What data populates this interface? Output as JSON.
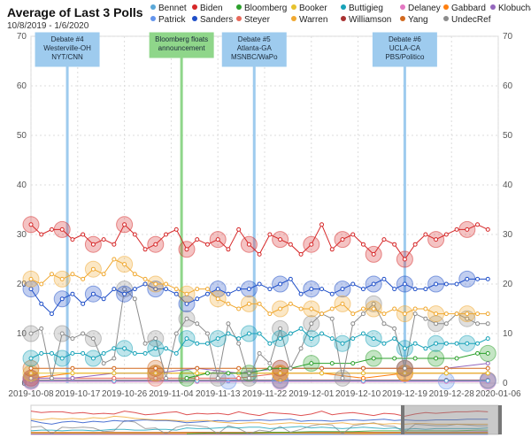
{
  "header": {
    "title": "Average of Last 3 Polls",
    "subtitle": "10/8/2019 - 1/6/2020"
  },
  "legend": [
    {
      "name": "Bennet",
      "color": "#5aa8d8"
    },
    {
      "name": "Biden",
      "color": "#d62728"
    },
    {
      "name": "Bloomberg",
      "color": "#2ca02c"
    },
    {
      "name": "Booker",
      "color": "#e6c22e"
    },
    {
      "name": "Buttigieg",
      "color": "#17a2b8"
    },
    {
      "name": "Delaney",
      "color": "#e377c2"
    },
    {
      "name": "Gabbard",
      "color": "#ff7f0e"
    },
    {
      "name": "Klobuchar",
      "color": "#9467bd"
    },
    {
      "name": "Patrick",
      "color": "#6495ed"
    },
    {
      "name": "Sanders",
      "color": "#1f4fc8"
    },
    {
      "name": "Steyer",
      "color": "#e8685a"
    },
    {
      "name": "Warren",
      "color": "#f0a830"
    },
    {
      "name": "Williamson",
      "color": "#a83232"
    },
    {
      "name": "Yang",
      "color": "#d2691e"
    },
    {
      "name": "UndecRef",
      "color": "#8c8c8c"
    }
  ],
  "chart_data": {
    "type": "line",
    "title": "Average of Last 3 Polls",
    "subtitle": "10/8/2019 - 1/6/2020",
    "ylim": [
      0,
      70
    ],
    "yticks": [
      0,
      10,
      20,
      30,
      40,
      50,
      60,
      70
    ],
    "xlim": [
      "2019-10-08",
      "2020-01-06"
    ],
    "xticks": [
      "2019-10-08",
      "2019-10-17",
      "2019-10-26",
      "2019-11-04",
      "2019-11-13",
      "2019-11-22",
      "2019-12-01",
      "2019-12-10",
      "2019-12-19",
      "2019-12-28",
      "2020-01-06"
    ],
    "grid": true,
    "annotations": [
      {
        "date": "2019-10-15",
        "label": "Debate #4 Westerville-OH NYT/CNN",
        "color": "#9ecbee"
      },
      {
        "date": "2019-11-06",
        "label": "Bloomberg floats announcement",
        "color": "#8fd68a"
      },
      {
        "date": "2019-11-20",
        "label": "Debate #5 Atlanta-GA MSNBC/WaPo",
        "color": "#9ecbee"
      },
      {
        "date": "2019-12-19",
        "label": "Debate #6 UCLA-CA PBS/Politico",
        "color": "#9ecbee"
      }
    ],
    "series": [
      {
        "name": "Biden",
        "color": "#d62728",
        "x": [
          "2019-10-08",
          "2019-10-10",
          "2019-10-12",
          "2019-10-14",
          "2019-10-16",
          "2019-10-18",
          "2019-10-20",
          "2019-10-22",
          "2019-10-24",
          "2019-10-26",
          "2019-10-28",
          "2019-10-30",
          "2019-11-01",
          "2019-11-03",
          "2019-11-05",
          "2019-11-07",
          "2019-11-09",
          "2019-11-11",
          "2019-11-13",
          "2019-11-15",
          "2019-11-17",
          "2019-11-19",
          "2019-11-21",
          "2019-11-23",
          "2019-11-25",
          "2019-11-27",
          "2019-11-29",
          "2019-12-01",
          "2019-12-03",
          "2019-12-05",
          "2019-12-07",
          "2019-12-09",
          "2019-12-11",
          "2019-12-13",
          "2019-12-15",
          "2019-12-17",
          "2019-12-19",
          "2019-12-21",
          "2019-12-23",
          "2019-12-25",
          "2019-12-27",
          "2019-12-29",
          "2019-12-31",
          "2020-01-02",
          "2020-01-04"
        ],
        "y": [
          32,
          30,
          31,
          31,
          29,
          30,
          28,
          29,
          28,
          32,
          30,
          27,
          28,
          30,
          31,
          27,
          29,
          28,
          29,
          27,
          31,
          28,
          26,
          30,
          29,
          28,
          26,
          28,
          32,
          27,
          29,
          30,
          28,
          26,
          29,
          28,
          25,
          28,
          30,
          29,
          30,
          31,
          31,
          32,
          31
        ]
      },
      {
        "name": "Warren",
        "color": "#f0a830",
        "x": [
          "2019-10-08",
          "2019-10-10",
          "2019-10-12",
          "2019-10-14",
          "2019-10-16",
          "2019-10-18",
          "2019-10-20",
          "2019-10-22",
          "2019-10-24",
          "2019-10-26",
          "2019-10-28",
          "2019-10-30",
          "2019-11-01",
          "2019-11-03",
          "2019-11-05",
          "2019-11-07",
          "2019-11-09",
          "2019-11-11",
          "2019-11-13",
          "2019-11-15",
          "2019-11-17",
          "2019-11-19",
          "2019-11-21",
          "2019-11-23",
          "2019-11-25",
          "2019-11-27",
          "2019-11-29",
          "2019-12-01",
          "2019-12-03",
          "2019-12-05",
          "2019-12-07",
          "2019-12-09",
          "2019-12-11",
          "2019-12-13",
          "2019-12-15",
          "2019-12-17",
          "2019-12-19",
          "2019-12-21",
          "2019-12-23",
          "2019-12-25",
          "2019-12-27",
          "2019-12-29",
          "2019-12-31",
          "2020-01-02",
          "2020-01-04"
        ],
        "y": [
          21,
          20,
          22,
          21,
          22,
          21,
          23,
          22,
          25,
          24,
          22,
          21,
          20,
          20,
          19,
          18,
          19,
          19,
          17,
          16,
          15,
          16,
          16,
          14,
          15,
          16,
          15,
          15,
          14,
          15,
          16,
          14,
          15,
          15,
          14,
          15,
          14,
          15,
          15,
          14,
          14,
          14,
          14,
          14,
          14
        ]
      },
      {
        "name": "Sanders",
        "color": "#1f4fc8",
        "x": [
          "2019-10-08",
          "2019-10-10",
          "2019-10-12",
          "2019-10-14",
          "2019-10-16",
          "2019-10-18",
          "2019-10-20",
          "2019-10-22",
          "2019-10-24",
          "2019-10-26",
          "2019-10-28",
          "2019-10-30",
          "2019-11-01",
          "2019-11-03",
          "2019-11-05",
          "2019-11-07",
          "2019-11-09",
          "2019-11-11",
          "2019-11-13",
          "2019-11-15",
          "2019-11-17",
          "2019-11-19",
          "2019-11-21",
          "2019-11-23",
          "2019-11-25",
          "2019-11-27",
          "2019-11-29",
          "2019-12-01",
          "2019-12-03",
          "2019-12-05",
          "2019-12-07",
          "2019-12-09",
          "2019-12-11",
          "2019-12-13",
          "2019-12-15",
          "2019-12-17",
          "2019-12-19",
          "2019-12-21",
          "2019-12-23",
          "2019-12-25",
          "2019-12-27",
          "2019-12-29",
          "2019-12-31",
          "2020-01-02",
          "2020-01-04"
        ],
        "y": [
          19,
          16,
          14,
          17,
          18,
          16,
          18,
          17,
          19,
          18,
          19,
          20,
          19,
          19,
          18,
          16,
          17,
          18,
          19,
          18,
          19,
          19,
          20,
          19,
          20,
          21,
          18,
          19,
          19,
          18,
          19,
          20,
          19,
          20,
          21,
          19,
          20,
          19,
          19,
          20,
          20,
          20,
          21,
          21,
          21
        ]
      },
      {
        "name": "Buttigieg",
        "color": "#17a2b8",
        "x": [
          "2019-10-08",
          "2019-10-10",
          "2019-10-12",
          "2019-10-14",
          "2019-10-16",
          "2019-10-18",
          "2019-10-20",
          "2019-10-22",
          "2019-10-24",
          "2019-10-26",
          "2019-10-28",
          "2019-10-30",
          "2019-11-01",
          "2019-11-03",
          "2019-11-05",
          "2019-11-07",
          "2019-11-09",
          "2019-11-11",
          "2019-11-13",
          "2019-11-15",
          "2019-11-17",
          "2019-11-19",
          "2019-11-21",
          "2019-11-23",
          "2019-11-25",
          "2019-11-27",
          "2019-11-29",
          "2019-12-01",
          "2019-12-03",
          "2019-12-05",
          "2019-12-07",
          "2019-12-09",
          "2019-12-11",
          "2019-12-13",
          "2019-12-15",
          "2019-12-17",
          "2019-12-19",
          "2019-12-21",
          "2019-12-23",
          "2019-12-25",
          "2019-12-27",
          "2019-12-29",
          "2019-12-31",
          "2020-01-02",
          "2020-01-04"
        ],
        "y": [
          5,
          6,
          6,
          5,
          6,
          6,
          5,
          6,
          7,
          7,
          6,
          6,
          7,
          7,
          6,
          9,
          8,
          8,
          9,
          10,
          9,
          10,
          10,
          8,
          9,
          10,
          11,
          9,
          10,
          9,
          8,
          9,
          10,
          9,
          8,
          9,
          7,
          8,
          7,
          8,
          8,
          8,
          8,
          8,
          9
        ]
      },
      {
        "name": "UndecRef",
        "color": "#8c8c8c",
        "x": [
          "2019-10-08",
          "2019-10-10",
          "2019-10-12",
          "2019-10-14",
          "2019-10-16",
          "2019-10-18",
          "2019-10-20",
          "2019-10-22",
          "2019-10-24",
          "2019-10-26",
          "2019-10-28",
          "2019-10-30",
          "2019-11-01",
          "2019-11-03",
          "2019-11-05",
          "2019-11-07",
          "2019-11-09",
          "2019-11-11",
          "2019-11-13",
          "2019-11-15",
          "2019-11-17",
          "2019-11-19",
          "2019-11-21",
          "2019-11-23",
          "2019-11-25",
          "2019-11-27",
          "2019-11-29",
          "2019-12-01",
          "2019-12-03",
          "2019-12-05",
          "2019-12-07",
          "2019-12-09",
          "2019-12-11",
          "2019-12-13",
          "2019-12-15",
          "2019-12-17",
          "2019-12-19",
          "2019-12-21",
          "2019-12-23",
          "2019-12-25",
          "2019-12-27",
          "2019-12-29",
          "2019-12-31",
          "2020-01-02",
          "2020-01-04"
        ],
        "y": [
          10,
          11,
          1,
          10,
          9,
          10,
          9,
          4,
          5,
          19,
          17,
          8,
          9,
          1,
          10,
          13,
          12,
          10,
          1,
          12,
          8,
          1,
          6,
          4,
          11,
          3,
          7,
          12,
          14,
          13,
          1,
          12,
          14,
          16,
          12,
          11,
          3,
          14,
          13,
          12,
          12,
          14,
          13,
          12,
          12
        ]
      },
      {
        "name": "Bloomberg",
        "color": "#2ca02c",
        "x": [
          "2019-11-07",
          "2019-11-11",
          "2019-11-15",
          "2019-11-19",
          "2019-11-23",
          "2019-11-27",
          "2019-12-01",
          "2019-12-05",
          "2019-12-09",
          "2019-12-13",
          "2019-12-17",
          "2019-12-21",
          "2019-12-25",
          "2019-12-29",
          "2020-01-02",
          "2020-01-04"
        ],
        "y": [
          1,
          2,
          2,
          2,
          3,
          3,
          4,
          4,
          4,
          5,
          5,
          5,
          5,
          5,
          6,
          6
        ]
      },
      {
        "name": "Yang",
        "color": "#d2691e",
        "x": [
          "2019-10-08",
          "2019-10-16",
          "2019-10-24",
          "2019-11-01",
          "2019-11-09",
          "2019-11-17",
          "2019-11-25",
          "2019-12-03",
          "2019-12-11",
          "2019-12-19",
          "2019-12-27",
          "2020-01-04"
        ],
        "y": [
          3,
          3,
          3,
          3,
          3,
          3,
          3,
          3,
          3,
          3,
          3,
          3
        ]
      },
      {
        "name": "Booker",
        "color": "#e6c22e",
        "x": [
          "2019-10-08",
          "2019-10-16",
          "2019-10-24",
          "2019-11-01",
          "2019-11-09",
          "2019-11-17",
          "2019-11-25",
          "2019-12-03",
          "2019-12-11",
          "2019-12-19",
          "2019-12-27",
          "2020-01-04"
        ],
        "y": [
          2,
          2,
          2,
          2,
          2,
          2,
          2,
          2,
          2,
          2,
          2,
          2
        ]
      },
      {
        "name": "Klobuchar",
        "color": "#9467bd",
        "x": [
          "2019-10-08",
          "2019-10-16",
          "2019-10-24",
          "2019-11-01",
          "2019-11-09",
          "2019-11-17",
          "2019-11-25",
          "2019-12-03",
          "2019-12-11",
          "2019-12-19",
          "2019-12-27",
          "2020-01-04"
        ],
        "y": [
          1,
          1,
          2,
          2,
          3,
          2,
          3,
          3,
          3,
          3,
          3,
          4
        ]
      },
      {
        "name": "Steyer",
        "color": "#e8685a",
        "x": [
          "2019-10-08",
          "2019-10-16",
          "2019-10-24",
          "2019-11-01",
          "2019-11-09",
          "2019-11-17",
          "2019-11-25",
          "2019-12-03",
          "2019-12-11",
          "2019-12-19",
          "2019-12-27",
          "2020-01-04"
        ],
        "y": [
          1,
          1,
          1,
          1,
          1,
          1,
          2,
          2,
          2,
          2,
          2,
          2
        ]
      },
      {
        "name": "Gabbard",
        "color": "#ff7f0e",
        "x": [
          "2019-10-08",
          "2019-10-16",
          "2019-10-24",
          "2019-11-01",
          "2019-11-09",
          "2019-11-17",
          "2019-11-25",
          "2019-12-03",
          "2019-12-11",
          "2019-12-19",
          "2019-12-27",
          "2020-01-04"
        ],
        "y": [
          1,
          2,
          2,
          2,
          2,
          2,
          2,
          2,
          1,
          2,
          2,
          2
        ]
      },
      {
        "name": "Bennet",
        "color": "#5aa8d8",
        "x": [
          "2019-10-08",
          "2019-10-24",
          "2019-11-09",
          "2019-11-25",
          "2019-12-11",
          "2019-12-27",
          "2020-01-04"
        ],
        "y": [
          0.5,
          0.5,
          0.5,
          0.5,
          0.5,
          0.5,
          0.5
        ]
      },
      {
        "name": "Delaney",
        "color": "#e377c2",
        "x": [
          "2019-10-08",
          "2019-10-24",
          "2019-11-09",
          "2019-11-25",
          "2019-12-11",
          "2019-12-27",
          "2020-01-04"
        ],
        "y": [
          0.3,
          0.3,
          0.3,
          0.3,
          0.3,
          0.3,
          0.3
        ]
      },
      {
        "name": "Patrick",
        "color": "#6495ed",
        "x": [
          "2019-11-15",
          "2019-11-25",
          "2019-12-11",
          "2019-12-27",
          "2020-01-04"
        ],
        "y": [
          0.4,
          0.4,
          0.4,
          0.4,
          0.4
        ]
      },
      {
        "name": "Williamson",
        "color": "#a83232",
        "x": [
          "2019-10-08",
          "2019-10-24",
          "2019-11-09",
          "2019-11-25",
          "2019-12-11",
          "2019-12-27",
          "2020-01-04"
        ],
        "y": [
          0.6,
          0.6,
          0.6,
          0.6,
          0.6,
          0.6,
          0.6
        ]
      }
    ]
  }
}
